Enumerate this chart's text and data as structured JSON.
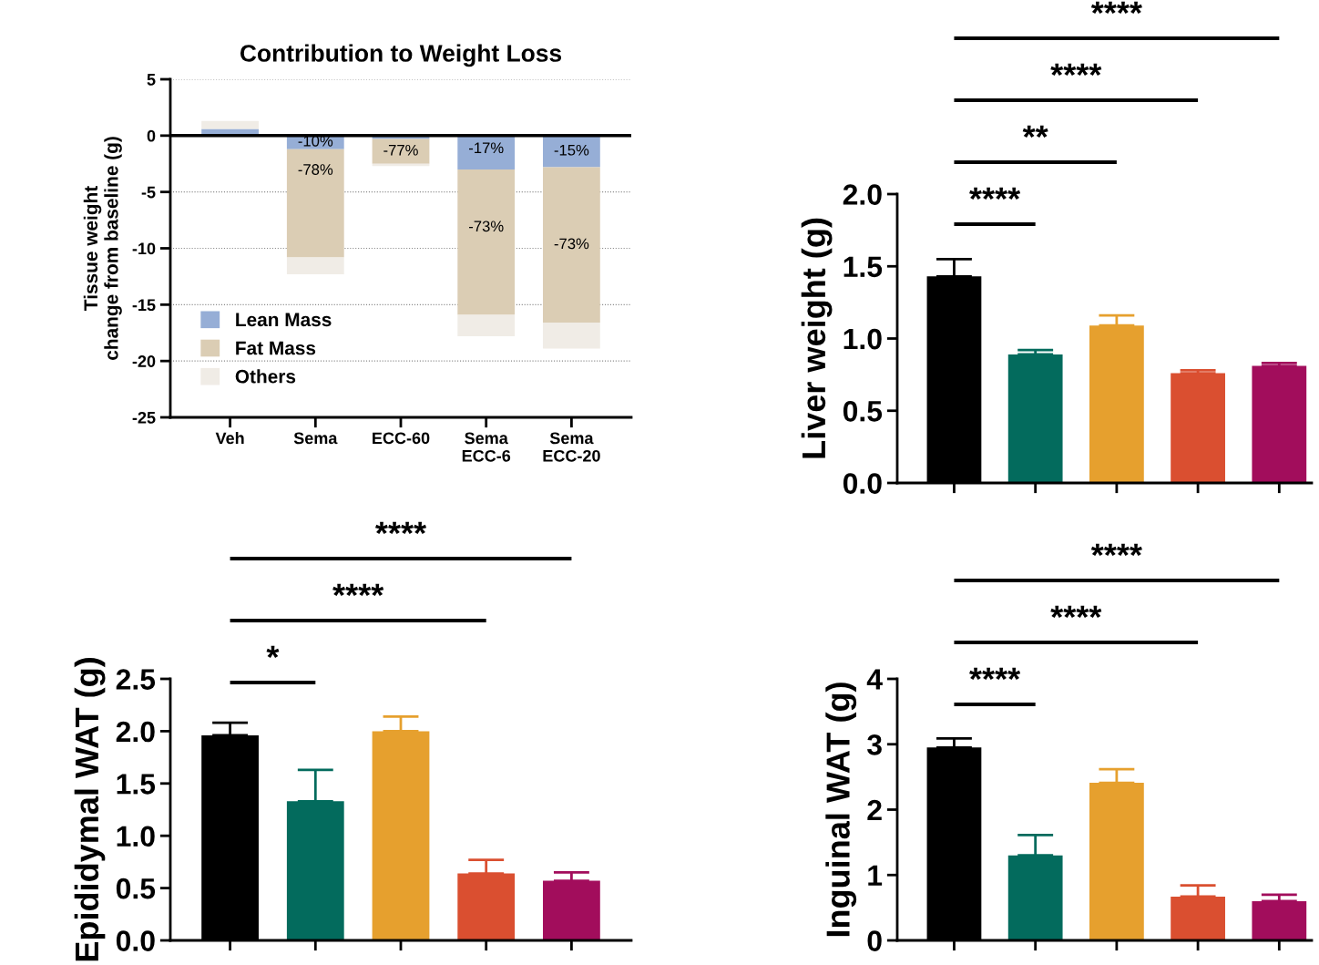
{
  "chart_data": [
    {
      "type": "bar",
      "title": "Contribution to Weight Loss",
      "ylabel": "Tissue weight\nchange from baseline (g)",
      "stacked": true,
      "categories": [
        "Veh",
        "Sema",
        "ECC-60",
        "Sema\nECC-6",
        "Sema\nECC-20"
      ],
      "series": [
        {
          "name": "Lean Mass",
          "color": "#96aed6",
          "values": [
            0.6,
            -1.2,
            -0.3,
            -3.0,
            -2.8
          ]
        },
        {
          "name": "Fat Mass",
          "color": "#dbcdb4",
          "values": [
            0,
            -9.6,
            -2.2,
            -12.9,
            -13.8
          ]
        },
        {
          "name": "Others",
          "color": "#f0ece6",
          "values": [
            0.7,
            -1.5,
            -0.2,
            -1.9,
            -2.3
          ]
        }
      ],
      "annotations": [
        "-10%",
        "-78%",
        "-77%",
        "-17%",
        "-73%",
        "-15%",
        "-73%"
      ],
      "ylim": [
        -25,
        5
      ],
      "yticks": [
        -25,
        -20,
        -15,
        -10,
        -5,
        0,
        5
      ],
      "grid": "y",
      "legend": "bottom left",
      "ref_lines": [
        {
          "axis": "y",
          "value": 0,
          "color": "#000000"
        }
      ]
    },
    {
      "type": "bar",
      "ylabel": "Epididymal WAT (g)",
      "categories": [
        null,
        null,
        null,
        null,
        null
      ],
      "values": [
        1.96,
        1.33,
        2.0,
        0.64,
        0.57
      ],
      "errors": [
        [
          1.96,
          2.08
        ],
        [
          1.33,
          1.63
        ],
        [
          2.0,
          2.14
        ],
        [
          0.64,
          0.77
        ],
        [
          0.57,
          0.65
        ]
      ],
      "colors": [
        "#000000",
        "#036b5d",
        "#e6a02e",
        "#da4f30",
        "#a20d5c"
      ],
      "ylim": [
        0,
        2.5
      ],
      "yticks": [
        {
          "value": 0,
          "label": "0.0"
        },
        0.5,
        {
          "value": 1,
          "label": "1.0"
        },
        1.5,
        {
          "value": 2,
          "label": "2.0"
        },
        2.5
      ],
      "tick_labels": "y",
      "annotations": [
        "*",
        "****",
        "****"
      ]
    },
    {
      "type": "bar",
      "ylabel": "Liver weight (g)",
      "categories": [
        null,
        null,
        null,
        null,
        null
      ],
      "values": [
        1.43,
        0.89,
        1.09,
        0.76,
        0.81
      ],
      "errors": [
        [
          1.43,
          1.55
        ],
        [
          0.89,
          0.92
        ],
        [
          1.09,
          1.16
        ],
        [
          0.76,
          0.78
        ],
        [
          0.81,
          0.83
        ]
      ],
      "colors": [
        "#000000",
        "#036b5d",
        "#e6a02e",
        "#da4f30",
        "#a20d5c"
      ],
      "ylim": [
        0,
        2.0
      ],
      "yticks": [
        {
          "value": 0,
          "label": "0.0"
        },
        0.5,
        {
          "value": 1,
          "label": "1.0"
        },
        1.5,
        {
          "value": 2,
          "label": "2.0"
        }
      ],
      "tick_labels": "y",
      "annotations": [
        "****",
        "**",
        "****",
        "****"
      ]
    },
    {
      "type": "bar",
      "ylabel": "Inguinal WAT (g)",
      "categories": [
        null,
        null,
        null,
        null,
        null
      ],
      "values": [
        2.95,
        1.3,
        2.41,
        0.67,
        0.6
      ],
      "errors": [
        [
          2.95,
          3.09
        ],
        [
          1.3,
          1.61
        ],
        [
          2.41,
          2.62
        ],
        [
          0.67,
          0.84
        ],
        [
          0.6,
          0.7
        ]
      ],
      "colors": [
        "#000000",
        "#036b5d",
        "#e6a02e",
        "#da4f30",
        "#a20d5c"
      ],
      "ylim": [
        0,
        4
      ],
      "yticks": [
        0,
        1,
        2,
        3,
        4
      ],
      "tick_labels": "y",
      "annotations": [
        "****",
        "****",
        "****"
      ]
    }
  ]
}
